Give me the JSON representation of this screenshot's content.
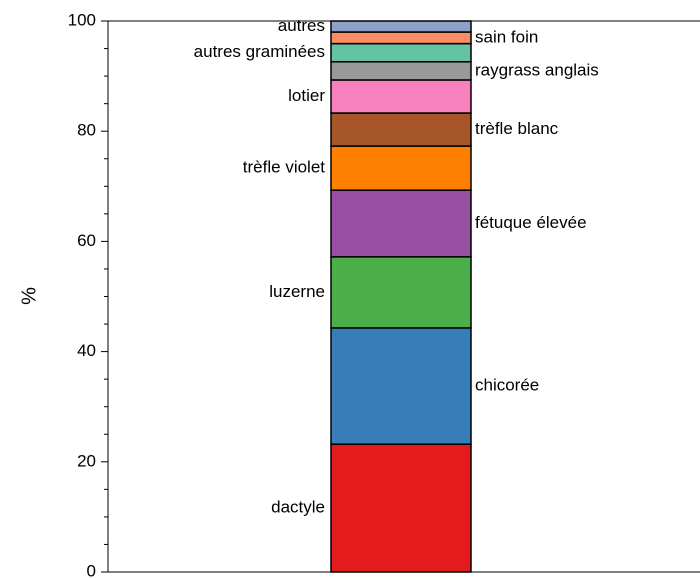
{
  "chart_data": {
    "type": "stacked-bar",
    "y_label": "%",
    "series": [
      {
        "name": "dactyle",
        "color": "#e41a1c",
        "values": [
          23.2
        ]
      },
      {
        "name": "chicorée",
        "color": "#377eb8",
        "values": [
          21.1
        ]
      },
      {
        "name": "luzerne",
        "color": "#4daf4a",
        "values": [
          12.9
        ]
      },
      {
        "name": "fétuque élevée",
        "color": "#984ea3",
        "values": [
          12.1
        ]
      },
      {
        "name": "trèfle violet",
        "color": "#ff7f00",
        "values": [
          8.0
        ]
      },
      {
        "name": "trèfle blanc",
        "color": "#a65628",
        "values": [
          6.0
        ]
      },
      {
        "name": "lotier",
        "color": "#f781bf",
        "values": [
          6.0
        ]
      },
      {
        "name": "raygrass anglais",
        "color": "#999999",
        "values": [
          3.3
        ]
      },
      {
        "name": "autres graminées",
        "color": "#66c2a5",
        "values": [
          3.3
        ]
      },
      {
        "name": "sain foin",
        "color": "#fc8d62",
        "values": [
          2.1
        ]
      },
      {
        "name": "autres",
        "color": "#8da0cb",
        "values": [
          2.0
        ]
      }
    ],
    "ylim": [
      0,
      100
    ],
    "yticks": [
      0,
      20,
      40,
      60,
      80,
      100
    ],
    "yminorticks": [
      5,
      10,
      15,
      25,
      30,
      35,
      45,
      50,
      55,
      65,
      70,
      75,
      85,
      90,
      95
    ]
  }
}
